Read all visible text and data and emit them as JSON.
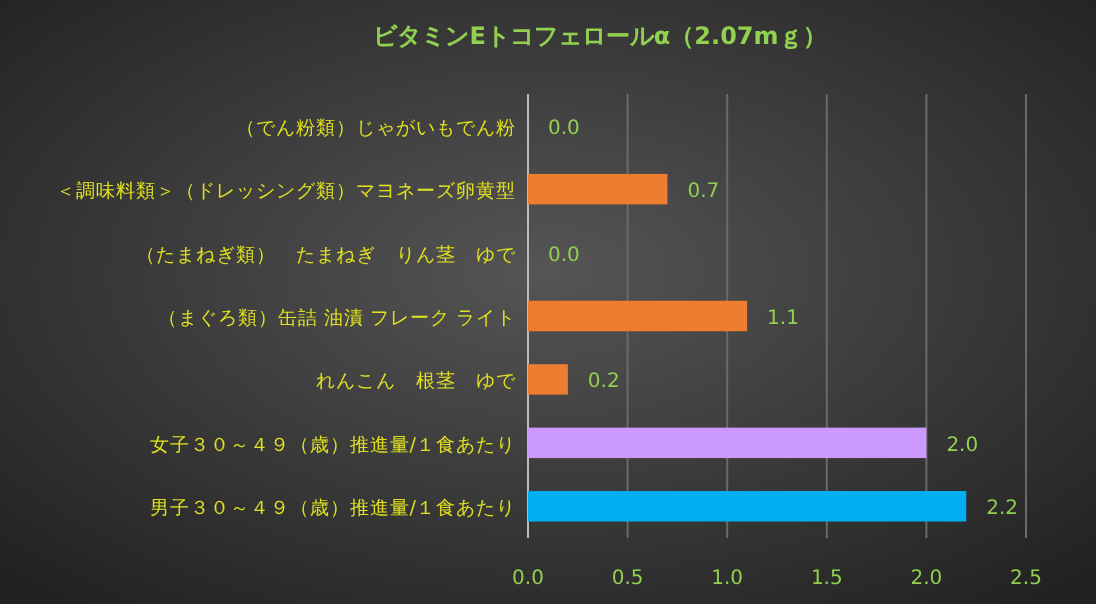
{
  "chart_data": {
    "type": "bar",
    "orientation": "horizontal",
    "title": "ビタミンEトコフェロールα（2.07mｇ）",
    "categories": [
      "（でん粉類）じゃがいもでん粉",
      "＜調味料類＞（ドレッシング類）マヨネーズ卵黄型",
      "（たまねぎ類）　たまねぎ　りん茎　ゆで",
      "（まぐろ類）缶詰 油漬 フレーク ライト",
      "れんこん　根茎　ゆで",
      "女子３０～４９（歳）推進量/１食あたり",
      "男子３０～４９（歳）推進量/１食あたり"
    ],
    "values": [
      0.0,
      0.7,
      0.0,
      1.1,
      0.2,
      2.0,
      2.2
    ],
    "value_labels": [
      "0.0",
      "0.7",
      "0.0",
      "1.1",
      "0.2",
      "2.0",
      "2.2"
    ],
    "colors": [
      "#ed7d31",
      "#ed7d31",
      "#ed7d31",
      "#ed7d31",
      "#ed7d31",
      "#cc99ff",
      "#00b0f0"
    ],
    "xlim": [
      0,
      2.5
    ],
    "xticks": [
      {
        "value": 0,
        "label": "0.0"
      },
      {
        "value": 0.5,
        "label": "0.5"
      },
      {
        "value": 1,
        "label": "1.0"
      },
      {
        "value": 1.5,
        "label": "1.5"
      },
      {
        "value": 2,
        "label": "2.0"
      },
      {
        "value": 2.5,
        "label": "2.5"
      }
    ],
    "grid": "x"
  }
}
